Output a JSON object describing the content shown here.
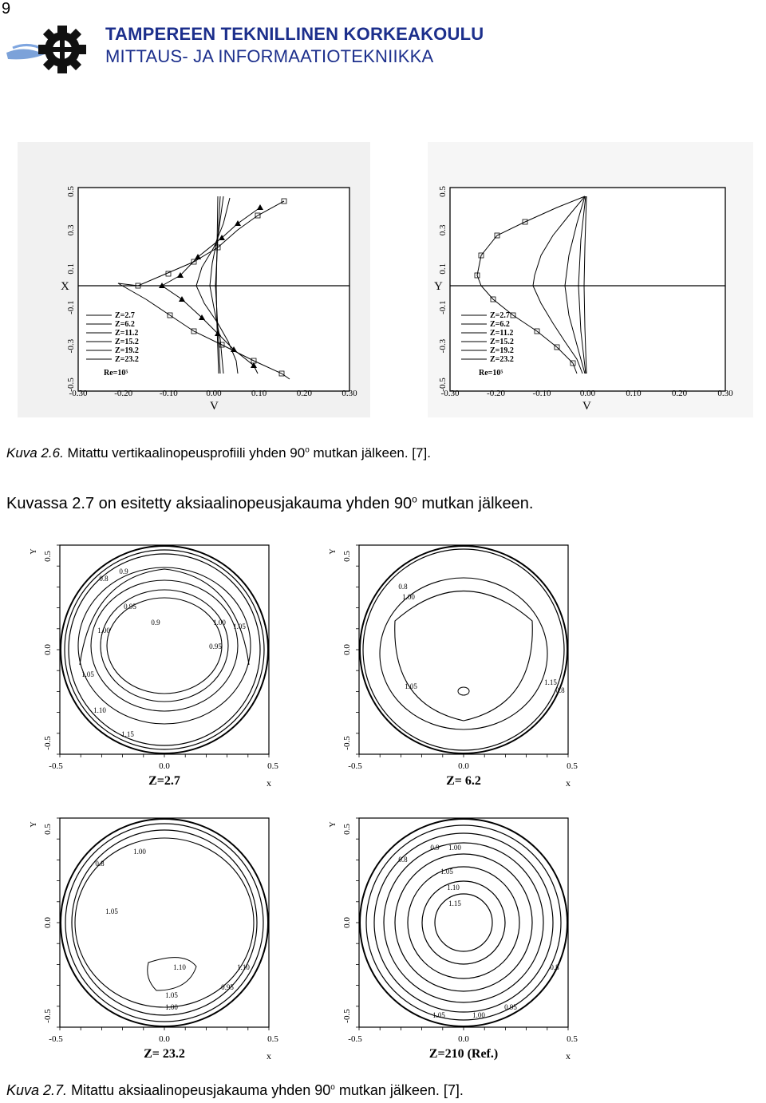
{
  "page": {
    "number": "9"
  },
  "header": {
    "university": "TAMPEREEN TEKNILLINEN KORKEAKOULU",
    "department": "MITTAUS- JA INFORMAATIOTEKNIIKKA"
  },
  "figure1": {
    "caption_label": "Kuva 2.6.",
    "caption_pre": " Mitattu vertikaalinopeusprofiili yhden 90",
    "caption_sup": "o",
    "caption_post": " mutkan jälkeen. [7].",
    "left_panel": {
      "ylabel": "X",
      "xlabel": "V",
      "yticks": [
        "0.5",
        "0.3",
        "0.1",
        "-0.1",
        "-0.3",
        "-0.5"
      ],
      "xticks": [
        "-0.30",
        "-0.20",
        "-0.10",
        "0.00",
        "0.10",
        "0.20",
        "0.30"
      ],
      "legend": [
        "Z=2.7",
        "Z=6.2",
        "Z=11.2",
        "Z=15.2",
        "Z=19.2",
        "Z=23.2",
        "Re=10⁵"
      ]
    },
    "right_panel": {
      "ylabel": "Y",
      "xlabel": "V",
      "yticks": [
        "0.5",
        "0.3",
        "0.1",
        "-0.1",
        "-0.3",
        "-0.5"
      ],
      "xticks": [
        "-0.30",
        "-0.20",
        "-0.10",
        "0.00",
        "0.10",
        "0.20",
        "0.30"
      ],
      "legend": [
        "Z=2.7",
        "Z=6.2",
        "Z=11.2",
        "Z=15.2",
        "Z=19.2",
        "Z=23.2",
        "Re=10⁵"
      ]
    }
  },
  "body": {
    "pre": "Kuvassa 2.7 on esitetty aksiaalinopeusjakauma yhden 90",
    "sup": "o",
    "post": " mutkan jälkeen."
  },
  "figure2": {
    "caption_label": "Kuva 2.7.",
    "caption_pre": " Mitattu aksiaalinopeusjakauma yhden 90",
    "caption_sup": "o",
    "caption_post": " mutkan jälkeen. [7].",
    "axis": {
      "y_top": "0.5",
      "y_mid": "0.0",
      "y_bot": "-0.5",
      "x_left": "-0.5",
      "x_mid": "0.0",
      "x_right": "0.5",
      "ylabel": "Y",
      "xlabel": "x"
    },
    "panels": [
      {
        "title": "Z=2.7",
        "labels": [
          "0.8",
          "0.9",
          "0.95",
          "0.9",
          "1.00",
          "1.00",
          "0.95",
          "1.05",
          "1.05",
          "1.10",
          "1.15"
        ]
      },
      {
        "title": "Z= 6.2",
        "labels": [
          "0.8",
          "1.00",
          "1.05",
          "1.15",
          "0.8"
        ]
      },
      {
        "title": "Z= 23.2",
        "labels": [
          "0.8",
          "1.00",
          "1.05",
          "1.10",
          "1.05",
          "1.00",
          "0.95",
          "1.10"
        ]
      },
      {
        "title": "Z=210 (Ref.)",
        "labels": [
          "0.8",
          "0.9",
          "1.00",
          "1.05",
          "1.10",
          "1.15",
          "0.95",
          "1.00",
          "1.05",
          "0.8"
        ]
      }
    ]
  }
}
